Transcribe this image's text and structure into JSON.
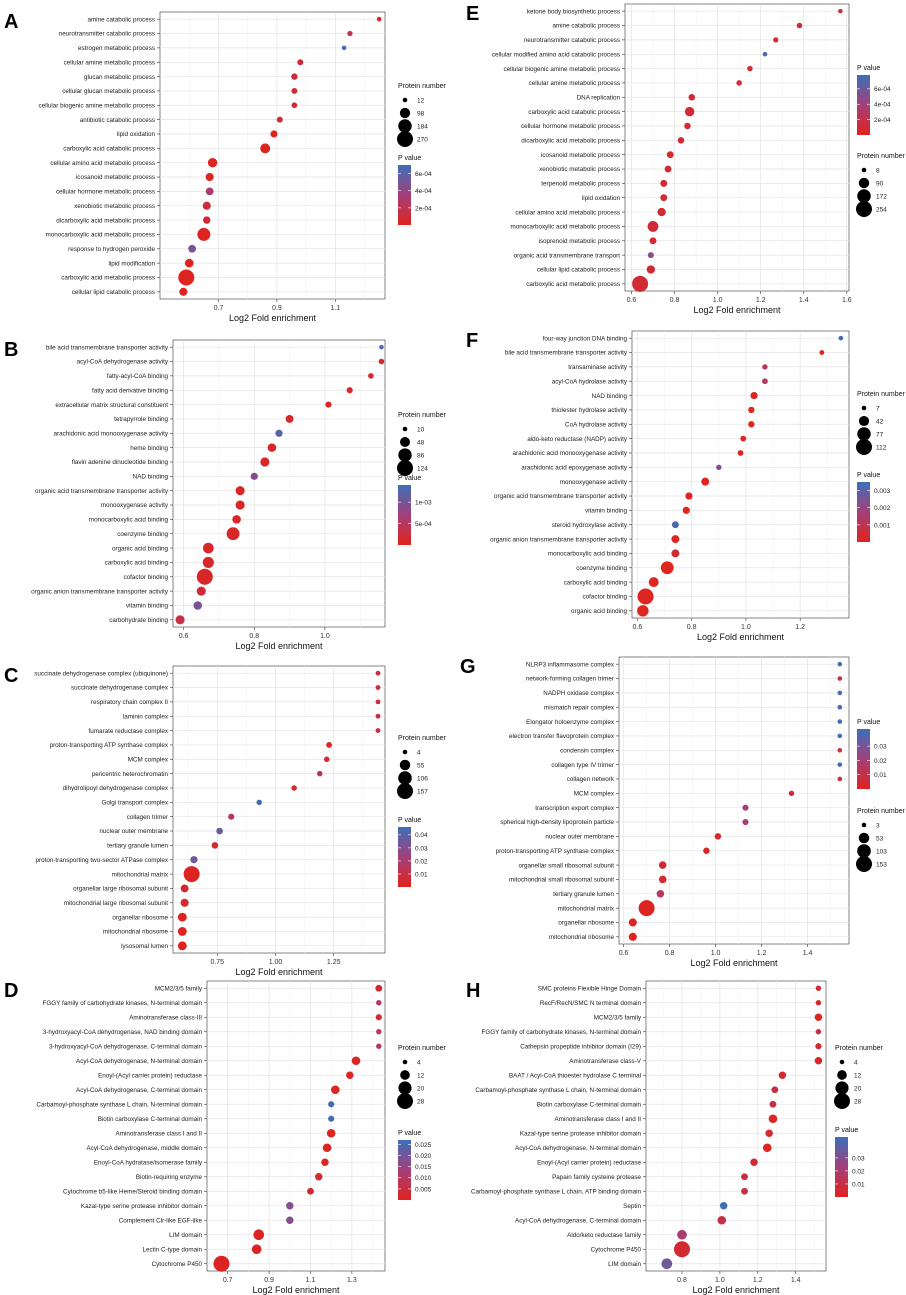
{
  "figure": {
    "x_axis_label": "Log2 Fold enrichment"
  },
  "legend_titles": {
    "size": "Protein number",
    "color": "P value"
  },
  "chart_data": [
    {
      "panel": "A",
      "type": "scatter",
      "xlabel": "Log2 Fold enrichment",
      "xlim": [
        0.5,
        1.27
      ],
      "xticks": [
        0.7,
        0.9,
        1.1
      ],
      "categories": [
        "amine catabolic process",
        "neurotransmitter catabolic process",
        "estrogen metabolic process",
        "cellular amine metabolic process",
        "glucan metabolic process",
        "cellular glucan metabolic process",
        "cellular biogenic amine metabolic process",
        "antibiotic catabolic process",
        "lipid oxidation",
        "carboxylic acid catabolic process",
        "cellular amino acid metabolic process",
        "icosanoid metabolic process",
        "cellular hormone metabolic process",
        "xenobiotic metabolic process",
        "dicarboxylic acid metabolic process",
        "monocarboxylic acid metabolic process",
        "response to hydrogen peroxide",
        "lipid modification",
        "carboxylic acid metabolic process",
        "cellular lipid catabolic process"
      ],
      "x": [
        1.25,
        1.15,
        1.13,
        0.98,
        0.96,
        0.96,
        0.96,
        0.91,
        0.89,
        0.86,
        0.68,
        0.67,
        0.67,
        0.66,
        0.66,
        0.65,
        0.61,
        0.6,
        0.59,
        0.58
      ],
      "size": [
        12,
        18,
        12,
        25,
        30,
        25,
        22,
        25,
        40,
        90,
        80,
        55,
        50,
        55,
        45,
        170,
        50,
        65,
        270,
        55
      ],
      "pvalue": [
        5e-05,
        0.0002,
        0.0007,
        0.0001,
        0.0001,
        0.0001,
        0.0001,
        0.0001,
        1e-05,
        1e-05,
        1e-05,
        1e-05,
        0.0003,
        0.0001,
        0.0001,
        1e-05,
        0.0005,
        1e-05,
        1e-05,
        1e-05
      ],
      "size_legend": [
        12,
        98,
        184,
        270
      ],
      "size_range": [
        12,
        270
      ],
      "pvalue_ticks": [
        "6e-04",
        "4e-04",
        "2e-04"
      ],
      "pvalue_tick_values": [
        0.0006,
        0.0004,
        0.0002
      ],
      "pvalue_range": [
        0,
        0.0007
      ],
      "legend_order": [
        "size",
        "color"
      ]
    },
    {
      "panel": "B",
      "type": "scatter",
      "xlabel": "Log2 Fold enrichment",
      "xlim": [
        0.57,
        1.17
      ],
      "xticks": [
        0.6,
        0.8,
        1.0
      ],
      "categories": [
        "bile acid transmembrane transporter activity",
        "acyl-CoA dehydrogenase activity",
        "fatty-acyl-CoA binding",
        "fatty acid derivative binding",
        "extracellular matrix structural constituent",
        "tetrapyrrole binding",
        "arachidonic acid monooxygenase activity",
        "heme binding",
        "flavin adenine dinucleotide binding",
        "NAD binding",
        "organic acid transmembrane transporter activity",
        "monooxygenase activity",
        "monocarboxylic acid binding",
        "coenzyme binding",
        "organic acid binding",
        "carboxylic acid binding",
        "cofactor binding",
        "organic anion transmembrane transporter activity",
        "vitamin binding",
        "carbohydrate binding"
      ],
      "x": [
        1.16,
        1.16,
        1.13,
        1.07,
        1.01,
        0.9,
        0.87,
        0.85,
        0.83,
        0.8,
        0.76,
        0.76,
        0.75,
        0.74,
        0.67,
        0.67,
        0.66,
        0.65,
        0.64,
        0.59
      ],
      "size": [
        10,
        15,
        15,
        18,
        18,
        30,
        25,
        35,
        40,
        25,
        40,
        40,
        35,
        80,
        55,
        60,
        124,
        40,
        35,
        40
      ],
      "pvalue": [
        0.0013,
        0.0001,
        0.0001,
        0.0001,
        0.0001,
        0.0001,
        0.0012,
        0.0001,
        0.0001,
        0.0009,
        0.0001,
        0.0001,
        0.0001,
        0.0001,
        0.0001,
        0.0001,
        0.0001,
        0.0002,
        0.001,
        0.0003
      ],
      "size_legend": [
        10,
        48,
        86,
        124
      ],
      "size_range": [
        10,
        124
      ],
      "pvalue_ticks": [
        "1e-03",
        "5e-04"
      ],
      "pvalue_tick_values": [
        0.001,
        0.0005
      ],
      "pvalue_range": [
        0,
        0.0014
      ],
      "legend_order": [
        "size",
        "color"
      ]
    },
    {
      "panel": "C",
      "type": "scatter",
      "xlabel": "Log2 Fold enrichment",
      "xlim": [
        0.56,
        1.47
      ],
      "xticks": [
        0.75,
        1.0,
        1.25
      ],
      "categories": [
        "succinate dehydrogenase complex (ubiquinone)",
        "succinate dehydrogenase complex",
        "respiratory chain complex II",
        "laminin complex",
        "fumarate reductase complex",
        "proton-transporting ATP synthase complex",
        "MCM complex",
        "pericentric heterochromatin",
        "dihydrolipoyl dehydrogenase complex",
        "Golgi transport complex",
        "collagen trimer",
        "nuclear outer membrane",
        "tertiary granule lumen",
        "proton-transporting two-sector ATPase complex",
        "mitochondrial matrix",
        "organellar large ribosomal subunit",
        "mitochondrial large ribosomal subunit",
        "organellar ribosome",
        "mitochondrial ribosome",
        "lysosomal lumen"
      ],
      "x": [
        1.44,
        1.44,
        1.44,
        1.44,
        1.44,
        1.23,
        1.22,
        1.19,
        1.08,
        0.93,
        0.81,
        0.76,
        0.74,
        0.65,
        0.64,
        0.61,
        0.61,
        0.6,
        0.6,
        0.6
      ],
      "size": [
        5,
        5,
        5,
        5,
        5,
        10,
        8,
        8,
        8,
        8,
        12,
        15,
        15,
        20,
        157,
        25,
        28,
        35,
        35,
        35
      ],
      "pvalue": [
        0.01,
        0.01,
        0.01,
        0.01,
        0.01,
        0.001,
        0.005,
        0.012,
        0.005,
        0.045,
        0.015,
        0.035,
        0.005,
        0.035,
        0.001,
        0.005,
        0.005,
        0.001,
        0.001,
        0.001
      ],
      "size_legend": [
        4,
        55,
        106,
        157
      ],
      "size_range": [
        4,
        157
      ],
      "pvalue_ticks": [
        "0.04",
        "0.03",
        "0.02",
        "0.01"
      ],
      "pvalue_tick_values": [
        0.04,
        0.03,
        0.02,
        0.01
      ],
      "pvalue_range": [
        0,
        0.046
      ],
      "legend_order": [
        "color",
        "size"
      ]
    },
    {
      "panel": "D",
      "type": "scatter",
      "xlabel": "Log2 Fold enrichment",
      "xlim": [
        0.6,
        1.46
      ],
      "xticks": [
        0.7,
        0.9,
        1.1,
        1.3
      ],
      "categories": [
        "MCM2/3/5 family",
        "FGGY family of carbohydrate kinases, N-terminal domain",
        "Aminotransferase class-III",
        "3-hydroxyacyl-CoA dehydrogenase, NAD binding domain",
        "3-hydroxyacyl-CoA dehydrogenase, C-terminal domain",
        "Acyl-CoA dehydrogenase, N-terminal domain",
        "Enoyl-(Acyl carrier protein) reductase",
        "Acyl-CoA dehydrogenase, C-terminal domain",
        "Carbamoyl-phosphate synthase L chain, N-terminal domain",
        "Biotin carboxylase C-terminal domain",
        "Aminotransferase class I and II",
        "Acyl-CoA dehydrogenase, middle domain",
        "Enoyl-CoA hydratase/isomerase family",
        "Biotin-requiring enzyme",
        "Cytochrome b5-like Heme/Steroid binding domain",
        "Kazal-type serine protease inhibitor domain",
        "Complement Clr-like EGF-like",
        "LIM domain",
        "Lectin C-type domain",
        "Cytochrome P450"
      ],
      "x": [
        1.43,
        1.43,
        1.43,
        1.43,
        1.43,
        1.32,
        1.29,
        1.22,
        1.2,
        1.2,
        1.2,
        1.18,
        1.17,
        1.14,
        1.1,
        1.0,
        1.0,
        0.85,
        0.84,
        0.67
      ],
      "size": [
        7,
        5,
        6,
        5,
        5,
        10,
        8,
        10,
        6,
        6,
        10,
        10,
        8,
        8,
        7,
        8,
        8,
        14,
        12,
        28
      ],
      "pvalue": [
        0.003,
        0.01,
        0.003,
        0.01,
        0.01,
        0.001,
        0.001,
        0.001,
        0.026,
        0.026,
        0.001,
        0.001,
        0.001,
        0.003,
        0.003,
        0.018,
        0.018,
        0.001,
        0.001,
        0.001
      ],
      "size_legend": [
        4,
        12,
        20,
        28
      ],
      "size_range": [
        4,
        28
      ],
      "pvalue_ticks": [
        "0.025",
        "0.020",
        "0.015",
        "0.010",
        "0.005"
      ],
      "pvalue_tick_values": [
        0.025,
        0.02,
        0.015,
        0.01,
        0.005
      ],
      "pvalue_range": [
        0,
        0.027
      ],
      "legend_order": [
        "size",
        "color"
      ]
    },
    {
      "panel": "E",
      "type": "scatter",
      "xlabel": "Log2 Fold enrichment",
      "xlim": [
        0.57,
        1.61
      ],
      "xticks": [
        0.6,
        0.8,
        1.0,
        1.2,
        1.4,
        1.6
      ],
      "categories": [
        "ketone body biosynthetic process",
        "amine catabolic process",
        "neurotransmitter catabolic process",
        "cellular modified amino acid catabolic process",
        "cellular biogenic amine metabolic process",
        "cellular amine metabolic process",
        "DNA replication",
        "carboxylic acid catabolic process",
        "cellular hormone metabolic process",
        "dicarboxylic acid metabolic process",
        "icosanoid metabolic process",
        "xenobiotic metabolic process",
        "terpenoid metabolic process",
        "lipid oxidation",
        "cellular amino acid metabolic process",
        "monocarboxylic acid metabolic process",
        "isoprenoid metabolic process",
        "organic acid transmembrane transport",
        "cellular lipid catabolic process",
        "carboxylic acid metabolic process"
      ],
      "x": [
        1.57,
        1.38,
        1.27,
        1.22,
        1.15,
        1.1,
        0.88,
        0.87,
        0.86,
        0.83,
        0.78,
        0.77,
        0.75,
        0.75,
        0.74,
        0.7,
        0.7,
        0.69,
        0.69,
        0.64
      ],
      "size": [
        8,
        15,
        12,
        8,
        15,
        15,
        25,
        70,
        25,
        25,
        30,
        30,
        30,
        30,
        50,
        100,
        30,
        20,
        50,
        254
      ],
      "pvalue": [
        0.0002,
        0.0001,
        0.0001,
        0.00075,
        0.0001,
        0.0001,
        0.0001,
        0.0001,
        0.0001,
        0.0001,
        0.0001,
        0.0001,
        0.0001,
        0.0001,
        0.0001,
        0.0001,
        0.0001,
        0.0005,
        0.0001,
        0.0001
      ],
      "size_legend": [
        8,
        90,
        172,
        254
      ],
      "size_range": [
        8,
        254
      ],
      "pvalue_ticks": [
        "6e-04",
        "4e-04",
        "2e-04"
      ],
      "pvalue_tick_values": [
        0.0006,
        0.0004,
        0.0002
      ],
      "pvalue_range": [
        0,
        0.00078
      ],
      "legend_order": [
        "color",
        "size"
      ]
    },
    {
      "panel": "F",
      "type": "scatter",
      "xlabel": "Log2 Fold enrichment",
      "xlim": [
        0.58,
        1.38
      ],
      "xticks": [
        0.6,
        0.8,
        1.0,
        1.2
      ],
      "categories": [
        "four-way junction DNA binding",
        "bile acid transmembrane transporter activity",
        "transaminase activity",
        "acyl-CoA hydrolase activity",
        "NAD binding",
        "thiolester hydrolase activity",
        "CoA hydrolase activity",
        "aldo-keto reductase (NADP) activity",
        "arachidonic acid monooxygenase activity",
        "arachidonic acid epoxygenase activity",
        "monooxygenase activity",
        "organic acid transmembrane transporter activity",
        "vitamin binding",
        "steroid hydroxylase activity",
        "organic anion transmembrane transporter activity",
        "monocarboxylic acid binding",
        "coenzyme binding",
        "carboxylic acid binding",
        "cofactor binding",
        "organic acid binding"
      ],
      "x": [
        1.35,
        1.28,
        1.07,
        1.07,
        1.03,
        1.02,
        1.02,
        0.99,
        0.98,
        0.9,
        0.85,
        0.79,
        0.78,
        0.74,
        0.74,
        0.74,
        0.71,
        0.66,
        0.63,
        0.62
      ],
      "size": [
        7,
        8,
        10,
        12,
        20,
        15,
        15,
        12,
        12,
        10,
        25,
        20,
        20,
        18,
        25,
        25,
        70,
        40,
        112,
        55
      ],
      "pvalue": [
        0.0034,
        0.0001,
        0.001,
        0.0013,
        0.0001,
        0.0001,
        0.0001,
        0.0001,
        0.0001,
        0.0024,
        0.0001,
        0.0001,
        0.0001,
        0.0031,
        0.0001,
        0.0005,
        0.0001,
        0.0001,
        0.0001,
        0.0001
      ],
      "size_legend": [
        7,
        42,
        77,
        112
      ],
      "size_range": [
        7,
        112
      ],
      "pvalue_ticks": [
        "0.003",
        "0.002",
        "0.001"
      ],
      "pvalue_tick_values": [
        0.003,
        0.002,
        0.001
      ],
      "pvalue_range": [
        0,
        0.0035
      ],
      "legend_order": [
        "size",
        "color"
      ]
    },
    {
      "panel": "G",
      "type": "scatter",
      "xlabel": "Log2 Fold enrichment",
      "xlim": [
        0.58,
        1.58
      ],
      "xticks": [
        0.6,
        0.8,
        1.0,
        1.2,
        1.4
      ],
      "categories": [
        "NLRP3 inflammasome complex",
        "network-forming collagen trimer",
        "NADPH oxidase complex",
        "mismatch repair complex",
        "Elongator holoenzyme complex",
        "electron transfer flavoprotein complex",
        "condensin complex",
        "collagen type IV trimer",
        "collagen network",
        "MCM complex",
        "transcription export complex",
        "spherical high-density lipoprotein particle",
        "nuclear outer membrane",
        "proton-transporting ATP synthase complex",
        "organellar small ribosomal subunit",
        "mitochondrial small ribosomal subunit",
        "tertiary granule lumen",
        "mitochondrial matrix",
        "organellar ribosome",
        "mitochondrial ribosome"
      ],
      "x": [
        1.54,
        1.54,
        1.54,
        1.54,
        1.54,
        1.54,
        1.54,
        1.54,
        1.54,
        1.33,
        1.13,
        1.13,
        1.01,
        0.96,
        0.77,
        0.77,
        0.76,
        0.7,
        0.64,
        0.64
      ],
      "size": [
        3,
        3,
        3,
        3,
        3,
        3,
        3,
        3,
        3,
        6,
        10,
        10,
        12,
        12,
        20,
        20,
        20,
        153,
        25,
        25
      ],
      "pvalue": [
        0.04,
        0.01,
        0.04,
        0.04,
        0.04,
        0.04,
        0.01,
        0.04,
        0.01,
        0.005,
        0.02,
        0.02,
        0.002,
        0.002,
        0.005,
        0.005,
        0.015,
        0.001,
        0.001,
        0.001
      ],
      "size_legend": [
        3,
        53,
        103,
        153
      ],
      "size_range": [
        3,
        153
      ],
      "pvalue_ticks": [
        "0.03",
        "0.02",
        "0.01"
      ],
      "pvalue_tick_values": [
        0.03,
        0.02,
        0.01
      ],
      "pvalue_range": [
        0,
        0.042
      ],
      "legend_order": [
        "color",
        "size"
      ]
    },
    {
      "panel": "H",
      "type": "scatter",
      "xlabel": "Log2 Fold enrichment",
      "xlim": [
        0.61,
        1.56
      ],
      "xticks": [
        0.8,
        1.0,
        1.2,
        1.4
      ],
      "categories": [
        "SMC proteins Flexible Hinge Domain",
        "RecF/RecN/SMC N terminal domain",
        "MCM2/3/5 family",
        "FGGY family of carbohydrate kinases, N-terminal domain",
        "Cathepsin propeptide inhibitor domain (I29)",
        "Aminotransferase class-V",
        "BAAT / Acyl-CoA thioester hydrolase C terminal",
        "Carbamoyl-phosphate synthase L chain, N-terminal domain",
        "Biotin carboxylase C-terminal domain",
        "Aminotransferase class I and II",
        "Kazal-type serine protease inhibitor domain",
        "Acyl-CoA dehydrogenase, N-terminal domain",
        "Enoyl-(Acyl carrier protein) reductase",
        "Papain family cysteine protease",
        "Carbamoyl-phosphate synthase L chain, ATP binding domain",
        "Septin",
        "Acyl-CoA dehydrogenase, C-terminal domain",
        "Aldo/keto reductase family",
        "Cytochrome P450",
        "LIM domain"
      ],
      "x": [
        1.52,
        1.52,
        1.52,
        1.52,
        1.52,
        1.52,
        1.33,
        1.29,
        1.28,
        1.28,
        1.26,
        1.25,
        1.18,
        1.13,
        1.13,
        1.02,
        1.01,
        0.8,
        0.8,
        0.72
      ],
      "size": [
        5,
        5,
        8,
        5,
        6,
        8,
        8,
        7,
        7,
        10,
        8,
        10,
        8,
        7,
        7,
        8,
        10,
        12,
        28,
        14
      ],
      "pvalue": [
        0.005,
        0.005,
        0.002,
        0.01,
        0.005,
        0.003,
        0.005,
        0.01,
        0.01,
        0.002,
        0.005,
        0.002,
        0.005,
        0.01,
        0.01,
        0.045,
        0.01,
        0.02,
        0.005,
        0.035
      ],
      "size_legend": [
        4,
        12,
        20,
        28
      ],
      "size_range": [
        4,
        28
      ],
      "pvalue_ticks": [
        "0.03",
        "0.02",
        "0.01"
      ],
      "pvalue_tick_values": [
        0.03,
        0.02,
        0.01
      ],
      "pvalue_range": [
        0,
        0.046
      ],
      "legend_order": [
        "size",
        "color"
      ]
    }
  ]
}
